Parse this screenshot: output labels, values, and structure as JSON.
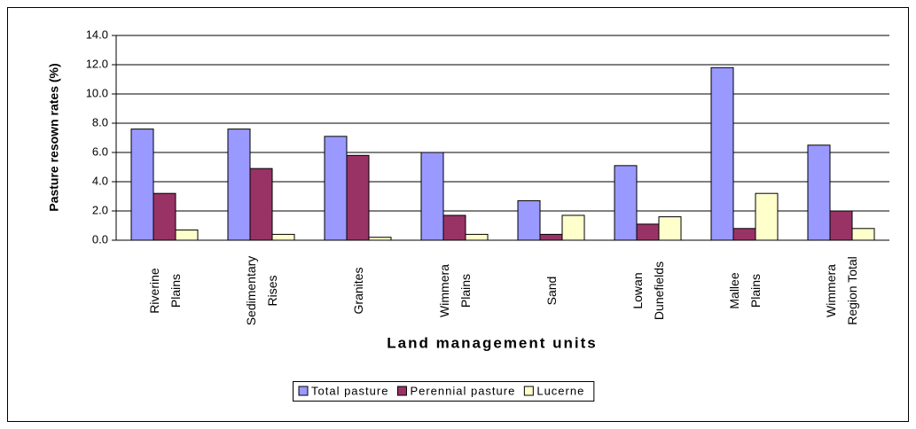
{
  "chart_data": {
    "type": "bar",
    "y_label": "Pasture resown rates (%)",
    "x_label": "Land management units",
    "categories": [
      "Riverine Plains",
      "Sedimentary Rises",
      "Granites",
      "Wimmera Plains",
      "Sand",
      "Lowan Dunefields",
      "Mallee Plains",
      "Wimmera Region Total"
    ],
    "series": [
      {
        "name": "Total pasture",
        "color": "#9999ff",
        "values": [
          7.6,
          7.6,
          7.1,
          6.0,
          2.7,
          5.1,
          11.8,
          6.5
        ]
      },
      {
        "name": "Perennial pasture",
        "color": "#993366",
        "values": [
          3.2,
          4.9,
          5.8,
          1.7,
          0.4,
          1.1,
          0.8,
          2.0
        ]
      },
      {
        "name": "Lucerne",
        "color": "#ffffcc",
        "values": [
          0.7,
          0.4,
          0.2,
          0.4,
          1.7,
          1.6,
          3.2,
          0.8
        ]
      }
    ],
    "ylim": [
      0,
      14
    ],
    "yticks": [
      {
        "value": 0,
        "label": "0.0"
      },
      {
        "value": 2,
        "label": "2.0"
      },
      {
        "value": 4,
        "label": "4.0"
      },
      {
        "value": 6,
        "label": "6.0"
      },
      {
        "value": 8,
        "label": "8.0"
      },
      {
        "value": 10,
        "label": "10.0"
      },
      {
        "value": 12,
        "label": "12.0"
      },
      {
        "value": 14,
        "label": "14.0"
      }
    ],
    "grid": true,
    "legend": "bottom"
  }
}
